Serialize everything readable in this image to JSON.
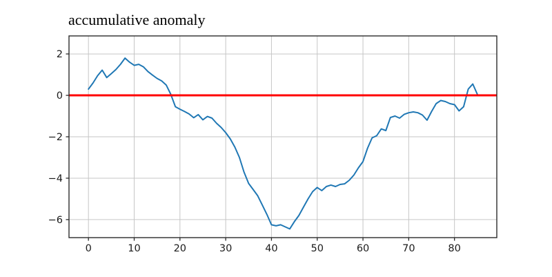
{
  "chart_data": {
    "type": "line",
    "title": "accumulative anomaly",
    "xlabel": "",
    "ylabel": "",
    "grid": true,
    "legend": "none",
    "xlim": [
      -4.25,
      89.25
    ],
    "ylim": [
      -6.87,
      2.87
    ],
    "xticks": [
      0,
      10,
      20,
      30,
      40,
      50,
      60,
      70,
      80
    ],
    "yticks": [
      2,
      0,
      -2,
      -4,
      -6
    ],
    "x": [
      0,
      1,
      2,
      3,
      4,
      5,
      6,
      7,
      8,
      9,
      10,
      11,
      12,
      13,
      14,
      15,
      16,
      17,
      18,
      19,
      20,
      21,
      22,
      23,
      24,
      25,
      26,
      27,
      28,
      29,
      30,
      31,
      32,
      33,
      34,
      35,
      36,
      37,
      38,
      39,
      40,
      41,
      42,
      43,
      44,
      45,
      46,
      47,
      48,
      49,
      50,
      51,
      52,
      53,
      54,
      55,
      56,
      57,
      58,
      59,
      60,
      61,
      62,
      63,
      64,
      65,
      66,
      67,
      68,
      69,
      70,
      71,
      72,
      73,
      74,
      75,
      76,
      77,
      78,
      79,
      80,
      81,
      82,
      83,
      84,
      85
    ],
    "series": [
      {
        "name": "accumulative anomaly",
        "color": "#1f77b4",
        "line_width": 2,
        "values": [
          0.3,
          0.6,
          0.95,
          1.22,
          0.86,
          1.05,
          1.25,
          1.5,
          1.8,
          1.6,
          1.45,
          1.5,
          1.38,
          1.15,
          0.98,
          0.82,
          0.7,
          0.5,
          0.05,
          -0.55,
          -0.67,
          -0.78,
          -0.9,
          -1.08,
          -0.93,
          -1.18,
          -1.02,
          -1.1,
          -1.35,
          -1.55,
          -1.8,
          -2.1,
          -2.5,
          -3.0,
          -3.7,
          -4.25,
          -4.55,
          -4.85,
          -5.3,
          -5.75,
          -6.25,
          -6.3,
          -6.25,
          -6.35,
          -6.45,
          -6.1,
          -5.8,
          -5.4,
          -5.0,
          -4.65,
          -4.45,
          -4.6,
          -4.4,
          -4.33,
          -4.4,
          -4.3,
          -4.27,
          -4.1,
          -3.85,
          -3.5,
          -3.2,
          -2.55,
          -2.05,
          -1.95,
          -1.62,
          -1.7,
          -1.07,
          -1.0,
          -1.1,
          -0.92,
          -0.84,
          -0.8,
          -0.84,
          -0.95,
          -1.2,
          -0.78,
          -0.4,
          -0.25,
          -0.3,
          -0.4,
          -0.45,
          -0.75,
          -0.55,
          0.3,
          0.55,
          0.05
        ]
      }
    ],
    "reference_line": {
      "y": 0,
      "color": "#ff0000",
      "line_width": 3
    },
    "colors": {
      "grid": "#c6c6c6",
      "spine": "#2a2a2a",
      "tick_text": "#1a1a1a",
      "background": "#ffffff"
    }
  }
}
